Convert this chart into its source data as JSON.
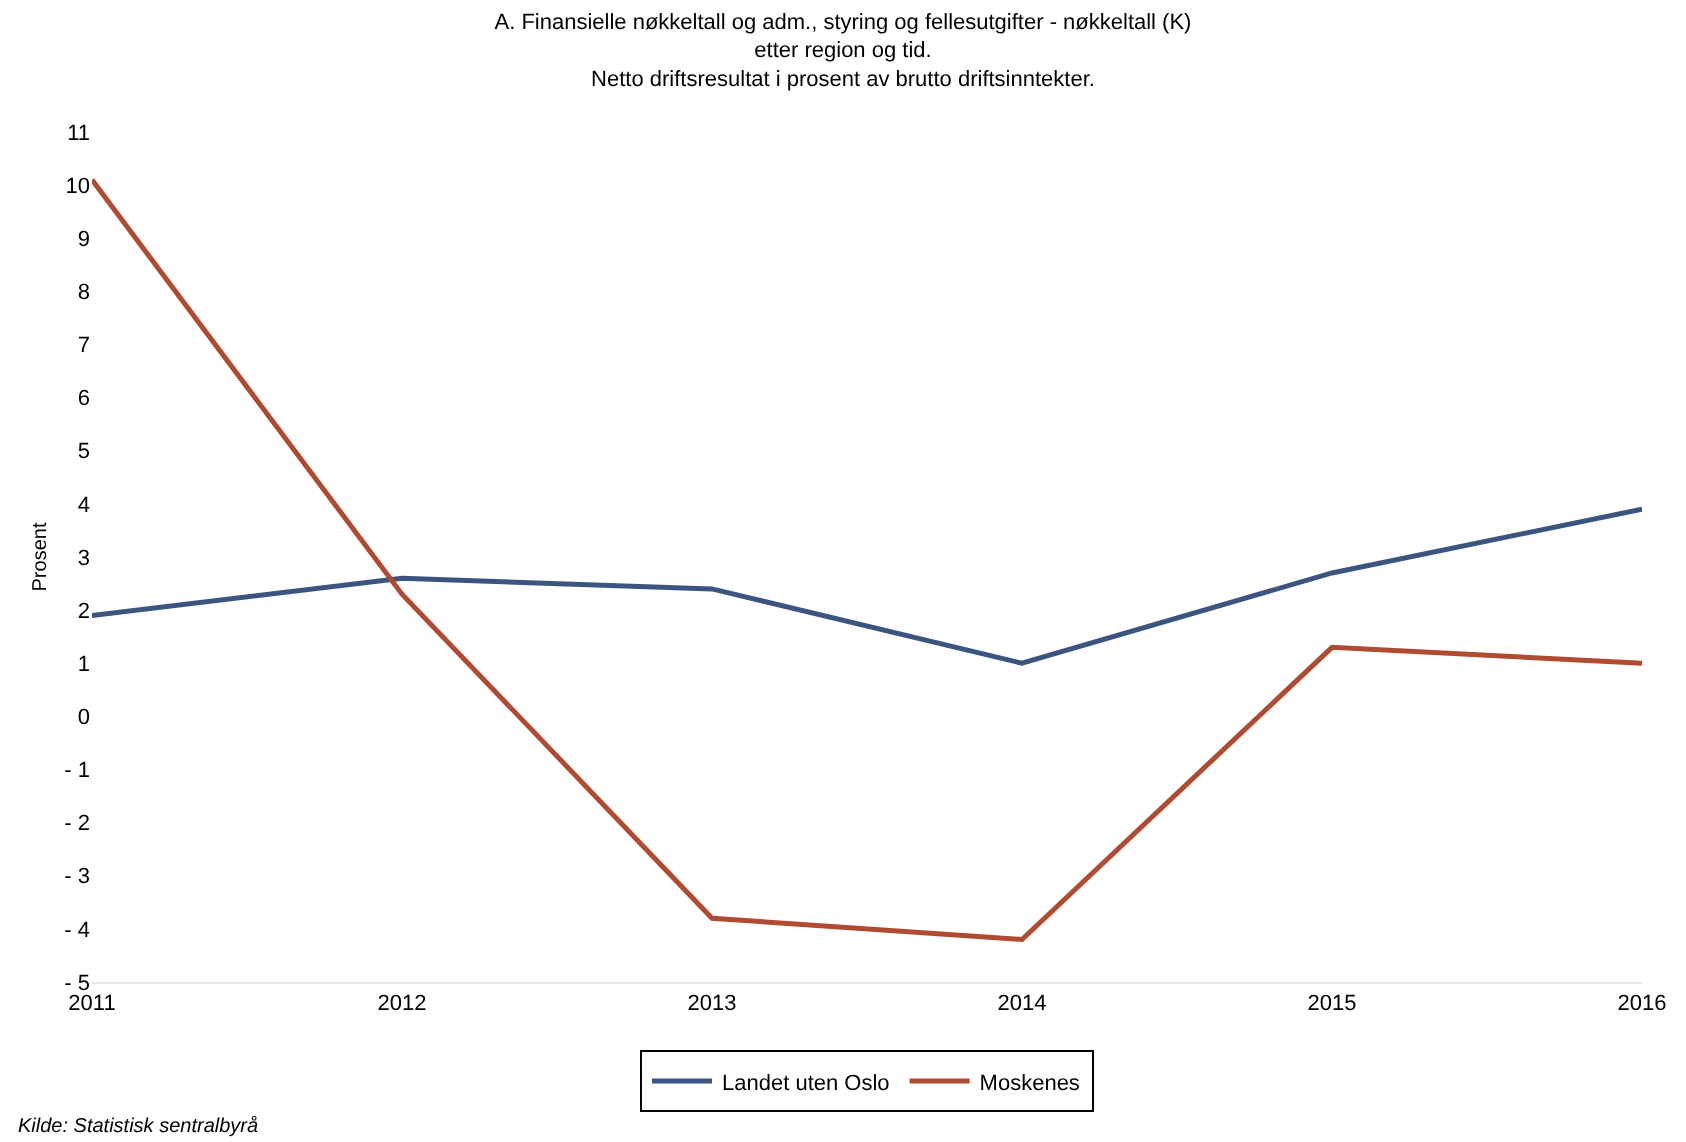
{
  "chart_data": {
    "type": "line",
    "title": "A. Finansielle nøkkeltall og adm., styring og fellesutgifter - nøkkeltall (K)\netter region og tid.\nNetto driftsresultat i prosent av brutto driftsinntekter.",
    "ylabel": "Prosent",
    "x": [
      2011,
      2012,
      2013,
      2014,
      2015,
      2016
    ],
    "series": [
      {
        "name": "Landet uten Oslo",
        "color": "#3b5580",
        "values": [
          1.9,
          2.6,
          2.4,
          1.0,
          2.7,
          3.9
        ]
      },
      {
        "name": "Moskenes",
        "color": "#b04a30",
        "values": [
          10.1,
          2.3,
          -3.8,
          -4.2,
          1.3,
          1.0
        ]
      }
    ],
    "xlim": [
      2011,
      2016
    ],
    "xticks": [
      2011,
      2012,
      2013,
      2014,
      2015,
      2016
    ],
    "ylim": [
      -5,
      11
    ],
    "yticks": [
      {
        "value": -5,
        "label": "- 5"
      },
      {
        "value": -4,
        "label": "- 4"
      },
      {
        "value": -3,
        "label": "- 3"
      },
      {
        "value": -2,
        "label": "- 2"
      },
      {
        "value": -1,
        "label": "- 1"
      },
      0,
      1,
      2,
      3,
      4,
      5,
      6,
      7,
      8,
      9,
      10,
      11
    ],
    "grid": false,
    "legend": "bottom",
    "marker": "none",
    "line_style": "solid",
    "annotations": [
      "Kilde: Statistisk sentralbyrå"
    ]
  }
}
